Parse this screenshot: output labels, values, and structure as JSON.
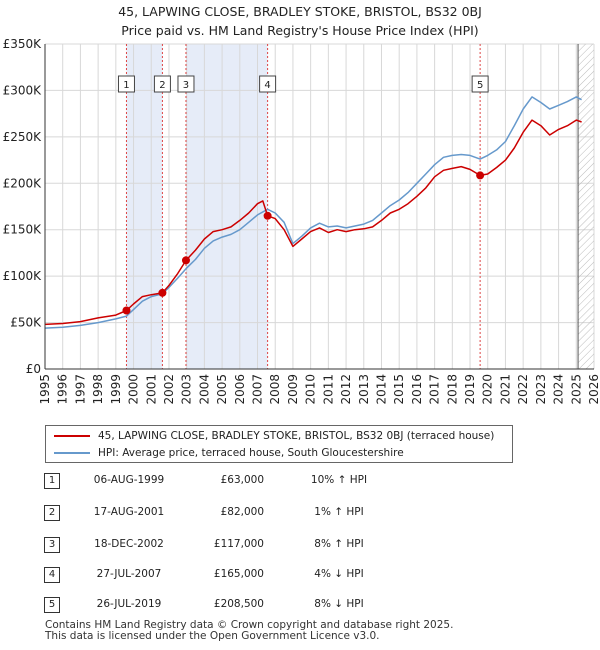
{
  "title_line1": "45, LAPWING CLOSE, BRADLEY STOKE, BRISTOL, BS32 0BJ",
  "title_line2": "Price paid vs. HM Land Registry's House Price Index (HPI)",
  "colors": {
    "property": "#cc0000",
    "hpi": "#6699cc",
    "shade": "#e6ecf8",
    "marker_line": "#dd4444",
    "grid": "#d8d8d8"
  },
  "legend": {
    "property_label": "45, LAPWING CLOSE, BRADLEY STOKE, BRISTOL, BS32 0BJ (terraced house)",
    "hpi_label": "HPI: Average price, terraced house, South Gloucestershire"
  },
  "sales": [
    {
      "num": "1",
      "date": "06-AUG-1999",
      "price": "£63,000",
      "hpi": "10% ↑ HPI",
      "year": 1999.6,
      "value": 63000
    },
    {
      "num": "2",
      "date": "17-AUG-2001",
      "price": "£82,000",
      "hpi": "1% ↑ HPI",
      "year": 2001.63,
      "value": 82000
    },
    {
      "num": "3",
      "date": "18-DEC-2002",
      "price": "£117,000",
      "hpi": "8% ↑ HPI",
      "year": 2002.96,
      "value": 117000
    },
    {
      "num": "4",
      "date": "27-JUL-2007",
      "price": "£165,000",
      "hpi": "4% ↓ HPI",
      "year": 2007.57,
      "value": 165000
    },
    {
      "num": "5",
      "date": "26-JUL-2019",
      "price": "£208,500",
      "hpi": "8% ↓ HPI",
      "year": 2019.57,
      "value": 208500
    }
  ],
  "footer": {
    "line1": "Contains HM Land Registry data © Crown copyright and database right 2025.",
    "line2": "This data is licensed under the Open Government Licence v3.0."
  },
  "chart_data": {
    "type": "line",
    "title": "45, LAPWING CLOSE, BRADLEY STOKE, BRISTOL, BS32 0BJ — Price paid vs. HM Land Registry's House Price Index (HPI)",
    "xlabel": "",
    "ylabel": "",
    "xlim": [
      1995,
      2026
    ],
    "ylim": [
      0,
      350000
    ],
    "x_ticks": [
      "1995",
      "1996",
      "1997",
      "1998",
      "1999",
      "2000",
      "2001",
      "2002",
      "2003",
      "2004",
      "2005",
      "2006",
      "2007",
      "2008",
      "2009",
      "2010",
      "2011",
      "2012",
      "2013",
      "2014",
      "2015",
      "2016",
      "2017",
      "2018",
      "2019",
      "2020",
      "2021",
      "2022",
      "2023",
      "2024",
      "2025",
      "2026"
    ],
    "y_ticks": [
      {
        "value": 0,
        "label": "£0"
      },
      {
        "value": 50000,
        "label": "£50K"
      },
      {
        "value": 100000,
        "label": "£100K"
      },
      {
        "value": 150000,
        "label": "£150K"
      },
      {
        "value": 200000,
        "label": "£200K"
      },
      {
        "value": 250000,
        "label": "£250K"
      },
      {
        "value": 300000,
        "label": "£300K"
      },
      {
        "value": 350000,
        "label": "£350K"
      }
    ],
    "shaded_periods": [
      [
        1999.6,
        2001.63
      ],
      [
        2002.96,
        2007.57
      ]
    ],
    "future_hatch_from": 2025.1,
    "legend_position": "below",
    "series": [
      {
        "name": "45, LAPWING CLOSE, BRADLEY STOKE, BRISTOL, BS32 0BJ (terraced house)",
        "color": "#cc0000",
        "points": [
          [
            1995.0,
            48000
          ],
          [
            1996.0,
            49000
          ],
          [
            1997.0,
            51000
          ],
          [
            1998.0,
            55000
          ],
          [
            1999.0,
            58000
          ],
          [
            1999.6,
            63000
          ],
          [
            2000.0,
            70000
          ],
          [
            2000.5,
            78000
          ],
          [
            2001.0,
            80000
          ],
          [
            2001.63,
            82000
          ],
          [
            2002.0,
            90000
          ],
          [
            2002.5,
            103000
          ],
          [
            2002.96,
            117000
          ],
          [
            2003.5,
            128000
          ],
          [
            2004.0,
            140000
          ],
          [
            2004.5,
            148000
          ],
          [
            2005.0,
            150000
          ],
          [
            2005.5,
            153000
          ],
          [
            2006.0,
            160000
          ],
          [
            2006.5,
            168000
          ],
          [
            2007.0,
            178000
          ],
          [
            2007.3,
            181000
          ],
          [
            2007.57,
            165000
          ],
          [
            2008.0,
            162000
          ],
          [
            2008.5,
            150000
          ],
          [
            2009.0,
            132000
          ],
          [
            2009.5,
            140000
          ],
          [
            2010.0,
            148000
          ],
          [
            2010.5,
            152000
          ],
          [
            2011.0,
            147000
          ],
          [
            2011.5,
            150000
          ],
          [
            2012.0,
            148000
          ],
          [
            2012.5,
            150000
          ],
          [
            2013.0,
            151000
          ],
          [
            2013.5,
            153000
          ],
          [
            2014.0,
            160000
          ],
          [
            2014.5,
            168000
          ],
          [
            2015.0,
            172000
          ],
          [
            2015.5,
            178000
          ],
          [
            2016.0,
            186000
          ],
          [
            2016.5,
            195000
          ],
          [
            2017.0,
            207000
          ],
          [
            2017.5,
            214000
          ],
          [
            2018.0,
            216000
          ],
          [
            2018.5,
            218000
          ],
          [
            2019.0,
            215000
          ],
          [
            2019.57,
            208500
          ],
          [
            2020.0,
            210000
          ],
          [
            2020.5,
            217000
          ],
          [
            2021.0,
            225000
          ],
          [
            2021.5,
            238000
          ],
          [
            2022.0,
            255000
          ],
          [
            2022.5,
            268000
          ],
          [
            2023.0,
            262000
          ],
          [
            2023.5,
            252000
          ],
          [
            2024.0,
            258000
          ],
          [
            2024.5,
            262000
          ],
          [
            2025.0,
            268000
          ],
          [
            2025.3,
            266000
          ]
        ]
      },
      {
        "name": "HPI: Average price, terraced house, South Gloucestershire",
        "color": "#6699cc",
        "points": [
          [
            1995.0,
            44000
          ],
          [
            1996.0,
            45000
          ],
          [
            1997.0,
            47000
          ],
          [
            1998.0,
            50000
          ],
          [
            1999.0,
            54000
          ],
          [
            1999.6,
            57000
          ],
          [
            2000.0,
            64000
          ],
          [
            2000.5,
            73000
          ],
          [
            2001.0,
            78000
          ],
          [
            2001.63,
            81000
          ],
          [
            2002.0,
            88000
          ],
          [
            2002.5,
            98000
          ],
          [
            2002.96,
            108000
          ],
          [
            2003.5,
            118000
          ],
          [
            2004.0,
            130000
          ],
          [
            2004.5,
            138000
          ],
          [
            2005.0,
            142000
          ],
          [
            2005.5,
            145000
          ],
          [
            2006.0,
            150000
          ],
          [
            2006.5,
            158000
          ],
          [
            2007.0,
            166000
          ],
          [
            2007.57,
            172000
          ],
          [
            2008.0,
            168000
          ],
          [
            2008.5,
            158000
          ],
          [
            2009.0,
            135000
          ],
          [
            2009.5,
            143000
          ],
          [
            2010.0,
            152000
          ],
          [
            2010.5,
            157000
          ],
          [
            2011.0,
            153000
          ],
          [
            2011.5,
            154000
          ],
          [
            2012.0,
            152000
          ],
          [
            2012.5,
            154000
          ],
          [
            2013.0,
            156000
          ],
          [
            2013.5,
            160000
          ],
          [
            2014.0,
            168000
          ],
          [
            2014.5,
            176000
          ],
          [
            2015.0,
            182000
          ],
          [
            2015.5,
            190000
          ],
          [
            2016.0,
            200000
          ],
          [
            2016.5,
            210000
          ],
          [
            2017.0,
            220000
          ],
          [
            2017.5,
            228000
          ],
          [
            2018.0,
            230000
          ],
          [
            2018.5,
            231000
          ],
          [
            2019.0,
            230000
          ],
          [
            2019.57,
            226000
          ],
          [
            2020.0,
            230000
          ],
          [
            2020.5,
            236000
          ],
          [
            2021.0,
            245000
          ],
          [
            2021.5,
            262000
          ],
          [
            2022.0,
            280000
          ],
          [
            2022.5,
            293000
          ],
          [
            2023.0,
            287000
          ],
          [
            2023.5,
            280000
          ],
          [
            2024.0,
            284000
          ],
          [
            2024.5,
            288000
          ],
          [
            2025.0,
            293000
          ],
          [
            2025.3,
            290000
          ]
        ]
      }
    ]
  }
}
